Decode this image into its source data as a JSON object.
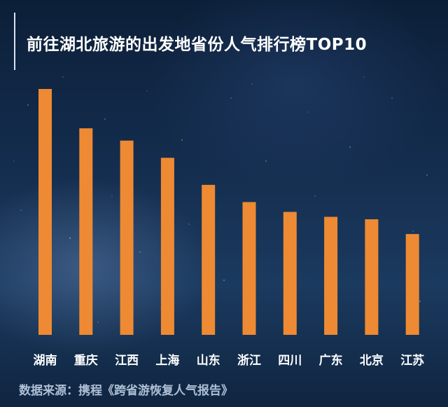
{
  "title": "前往湖北旅游的出发地省份人气排行榜TOP10",
  "source": "数据来源：携程《跨省游恢复人气报告》",
  "colors": {
    "bar": "#ee8a33",
    "background": "#142d4e",
    "text": "#ffffff"
  },
  "chart_data": {
    "type": "bar",
    "title": "前往湖北旅游的出发地省份人气排行榜TOP10",
    "categories": [
      "湖南",
      "重庆",
      "江西",
      "上海",
      "山东",
      "浙江",
      "四川",
      "广东",
      "北京",
      "江苏"
    ],
    "values": [
      100,
      84,
      79,
      72,
      61,
      54,
      50,
      48,
      47,
      41
    ],
    "ylim": [
      0,
      100
    ],
    "xlabel": "",
    "ylabel": "",
    "grid": false,
    "legend": "none"
  }
}
